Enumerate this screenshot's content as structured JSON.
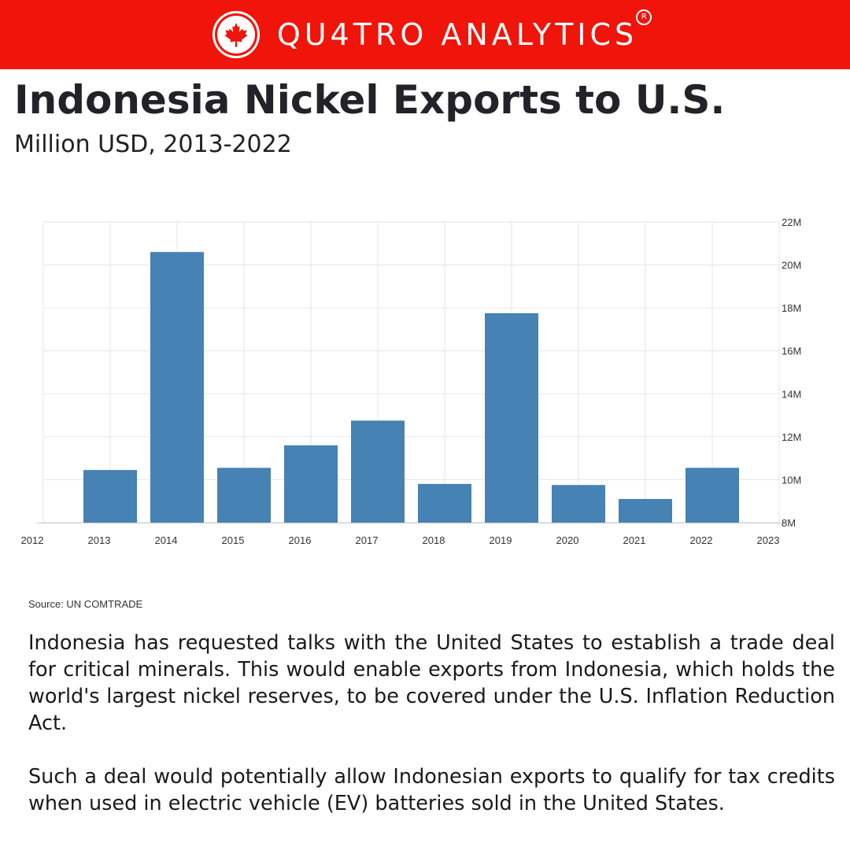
{
  "header": {
    "brand": "QU4TRO ANALYTICS",
    "registered_mark": "R",
    "logo_icon": "maple-leaf-icon",
    "background_color": "#f0140a"
  },
  "title": "Indonesia Nickel Exports to U.S.",
  "subtitle": "Million USD, 2013-2022",
  "chart_data": {
    "type": "bar",
    "categories": [
      "2013",
      "2014",
      "2015",
      "2016",
      "2017",
      "2018",
      "2019",
      "2020",
      "2021",
      "2022"
    ],
    "values": [
      10.45,
      20.6,
      10.55,
      11.6,
      12.75,
      9.8,
      17.75,
      9.75,
      9.1,
      10.55
    ],
    "x_ticks": [
      "2012",
      "2013",
      "2014",
      "2015",
      "2016",
      "2017",
      "2018",
      "2019",
      "2020",
      "2021",
      "2022",
      "2023"
    ],
    "y_ticks": [
      "8M",
      "10M",
      "12M",
      "14M",
      "16M",
      "18M",
      "20M",
      "22M"
    ],
    "ylim": [
      8,
      22
    ],
    "y_axis_side": "right",
    "grid": true,
    "bar_color": "#4682b4",
    "xlabel": "",
    "ylabel": ""
  },
  "source": "Source: UN COMTRADE",
  "paragraphs": [
    "Indonesia has requested talks with the United States to establish a trade deal for critical minerals. This would enable exports from Indonesia, which holds the world's largest nickel reserves, to be covered under the U.S. Inflation Reduction Act.",
    "Such a deal would potentially allow Indonesian exports to qualify for tax credits when used in electric vehicle (EV) batteries sold in the United States."
  ]
}
